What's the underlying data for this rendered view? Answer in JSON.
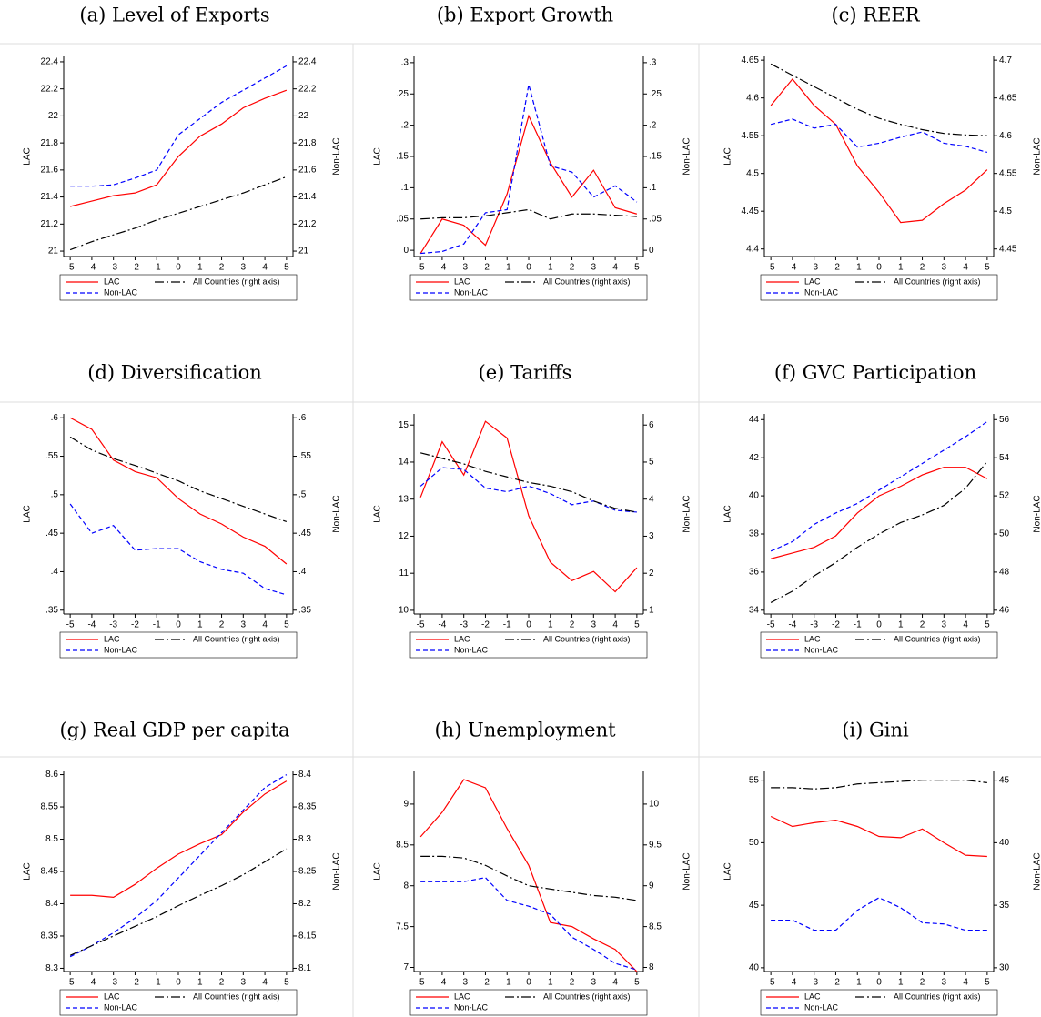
{
  "chart_data": [
    {
      "type": "line",
      "title": "(a) Level of Exports",
      "ylabel": "LAC",
      "y2label": "Non-LAC",
      "x": [
        -5,
        -4,
        -3,
        -2,
        -1,
        0,
        1,
        2,
        3,
        4,
        5
      ],
      "xlim": [
        -5.3,
        5.3
      ],
      "xticks": [
        -5,
        -4,
        -3,
        -2,
        -1,
        0,
        1,
        2,
        3,
        4,
        5
      ],
      "ylim": [
        20.96,
        22.44
      ],
      "yticks": [
        21,
        21.2,
        21.4,
        21.6,
        21.8,
        22,
        22.2,
        22.4
      ],
      "y2lim": [
        20.96,
        22.44
      ],
      "y2ticks": [
        21,
        21.2,
        21.4,
        21.6,
        21.8,
        22,
        22.2,
        22.4
      ],
      "series": [
        {
          "name": "LAC",
          "color": "#ff0000",
          "dash": "solid",
          "values": [
            21.33,
            21.37,
            21.41,
            21.43,
            21.49,
            21.7,
            21.85,
            21.94,
            22.06,
            22.13,
            22.19
          ]
        },
        {
          "name": "Non-LAC",
          "color": "#0000ff",
          "dash": "dash",
          "axis": "y2",
          "values": [
            21.48,
            21.48,
            21.49,
            21.54,
            21.6,
            21.86,
            21.98,
            22.1,
            22.19,
            22.28,
            22.37
          ]
        },
        {
          "name": "All Countries (right axis)",
          "color": "#000000",
          "dash": "longdash",
          "axis": "y2",
          "values": [
            21.01,
            21.07,
            21.12,
            21.17,
            21.23,
            21.28,
            21.33,
            21.38,
            21.43,
            21.49,
            21.55
          ]
        }
      ]
    },
    {
      "type": "line",
      "title": "(b) Export Growth",
      "ylabel": "LAC",
      "y2label": "Non-LAC",
      "x": [
        -5,
        -4,
        -3,
        -2,
        -1,
        0,
        1,
        2,
        3,
        4,
        5
      ],
      "xlim": [
        -5.3,
        5.3
      ],
      "xticks": [
        -5,
        -4,
        -3,
        -2,
        -1,
        0,
        1,
        2,
        3,
        4,
        5
      ],
      "ylim": [
        -0.01,
        0.31
      ],
      "yticks": [
        0,
        {
          "value": 0.05,
          "label": ".05"
        },
        {
          "value": 0.1,
          "label": ".1"
        },
        {
          "value": 0.15,
          "label": ".15"
        },
        {
          "value": 0.2,
          "label": ".2"
        },
        {
          "value": 0.25,
          "label": ".25"
        },
        {
          "value": 0.3,
          "label": ".3"
        }
      ],
      "y2lim": [
        -0.01,
        0.31
      ],
      "y2ticks": [
        0,
        {
          "value": 0.05,
          "label": ".05"
        },
        {
          "value": 0.1,
          "label": ".1"
        },
        {
          "value": 0.15,
          "label": ".15"
        },
        {
          "value": 0.2,
          "label": ".2"
        },
        {
          "value": 0.25,
          "label": ".25"
        },
        {
          "value": 0.3,
          "label": ".3"
        }
      ],
      "series": [
        {
          "name": "LAC",
          "color": "#ff0000",
          "dash": "solid",
          "values": [
            -0.005,
            0.05,
            0.04,
            0.008,
            0.09,
            0.215,
            0.14,
            0.085,
            0.128,
            0.068,
            0.058
          ]
        },
        {
          "name": "Non-LAC",
          "color": "#0000ff",
          "dash": "dash",
          "axis": "y2",
          "values": [
            -0.005,
            -0.002,
            0.01,
            0.06,
            0.065,
            0.265,
            0.135,
            0.125,
            0.085,
            0.103,
            0.077
          ]
        },
        {
          "name": "All Countries (right axis)",
          "color": "#000000",
          "dash": "longdash",
          "axis": "y2",
          "values": [
            0.05,
            0.052,
            0.052,
            0.055,
            0.06,
            0.065,
            0.05,
            0.058,
            0.058,
            0.056,
            0.054
          ]
        }
      ]
    },
    {
      "type": "line",
      "title": "(c) REER",
      "ylabel": "LAC",
      "y2label": "Non-LAC",
      "x": [
        -5,
        -4,
        -3,
        -2,
        -1,
        0,
        1,
        2,
        3,
        4,
        5
      ],
      "xlim": [
        -5.3,
        5.3
      ],
      "xticks": [
        -5,
        -4,
        -3,
        -2,
        -1,
        0,
        1,
        2,
        3,
        4,
        5
      ],
      "ylim": [
        4.39,
        4.655
      ],
      "yticks": [
        4.4,
        4.45,
        4.5,
        4.55,
        4.6,
        4.65
      ],
      "y2lim": [
        4.44,
        4.705
      ],
      "y2ticks": [
        4.45,
        4.5,
        4.55,
        4.6,
        4.65,
        4.7
      ],
      "series": [
        {
          "name": "LAC",
          "color": "#ff0000",
          "dash": "solid",
          "values": [
            4.59,
            4.625,
            4.59,
            4.565,
            4.51,
            4.475,
            4.435,
            4.438,
            4.46,
            4.478,
            4.505
          ]
        },
        {
          "name": "Non-LAC",
          "color": "#0000ff",
          "dash": "dash",
          "axis": "y2",
          "values": [
            4.615,
            4.622,
            4.61,
            4.615,
            4.585,
            4.59,
            4.598,
            4.605,
            4.59,
            4.586,
            4.578
          ]
        },
        {
          "name": "All Countries (right axis)",
          "color": "#000000",
          "dash": "longdash",
          "axis": "y2",
          "values": [
            4.695,
            4.68,
            4.665,
            4.65,
            4.635,
            4.623,
            4.615,
            4.608,
            4.603,
            4.601,
            4.6
          ]
        }
      ]
    },
    {
      "type": "line",
      "title": "(d) Diversification",
      "ylabel": "LAC",
      "y2label": "Non-LAC",
      "x": [
        -5,
        -4,
        -3,
        -2,
        -1,
        0,
        1,
        2,
        3,
        4,
        5
      ],
      "xlim": [
        -5.3,
        5.3
      ],
      "xticks": [
        -5,
        -4,
        -3,
        -2,
        -1,
        0,
        1,
        2,
        3,
        4,
        5
      ],
      "ylim": [
        0.345,
        0.605
      ],
      "yticks": [
        {
          "value": 0.35,
          "label": ".35"
        },
        {
          "value": 0.4,
          "label": ".4"
        },
        {
          "value": 0.45,
          "label": ".45"
        },
        {
          "value": 0.5,
          "label": ".5"
        },
        {
          "value": 0.55,
          "label": ".55"
        },
        {
          "value": 0.6,
          "label": ".6"
        }
      ],
      "y2lim": [
        0.345,
        0.605
      ],
      "y2ticks": [
        {
          "value": 0.35,
          "label": ".35"
        },
        {
          "value": 0.4,
          "label": ".4"
        },
        {
          "value": 0.45,
          "label": ".45"
        },
        {
          "value": 0.5,
          "label": ".5"
        },
        {
          "value": 0.55,
          "label": ".55"
        },
        {
          "value": 0.6,
          "label": ".6"
        }
      ],
      "series": [
        {
          "name": "LAC",
          "color": "#ff0000",
          "dash": "solid",
          "values": [
            0.6,
            0.585,
            0.545,
            0.53,
            0.522,
            0.495,
            0.475,
            0.462,
            0.445,
            0.433,
            0.41
          ]
        },
        {
          "name": "Non-LAC",
          "color": "#0000ff",
          "dash": "dash",
          "axis": "y2",
          "values": [
            0.488,
            0.45,
            0.46,
            0.428,
            0.43,
            0.43,
            0.413,
            0.403,
            0.398,
            0.378,
            0.37
          ]
        },
        {
          "name": "All Countries (right axis)",
          "color": "#000000",
          "dash": "longdash",
          "axis": "y2",
          "values": [
            0.575,
            0.558,
            0.547,
            0.538,
            0.528,
            0.518,
            0.505,
            0.495,
            0.485,
            0.475,
            0.465
          ]
        }
      ]
    },
    {
      "type": "line",
      "title": "(e) Tariffs",
      "ylabel": "LAC",
      "y2label": "Non-LAC",
      "x": [
        -5,
        -4,
        -3,
        -2,
        -1,
        0,
        1,
        2,
        3,
        4,
        5
      ],
      "xlim": [
        -5.3,
        5.3
      ],
      "xticks": [
        -5,
        -4,
        -3,
        -2,
        -1,
        0,
        1,
        2,
        3,
        4,
        5
      ],
      "ylim": [
        9.9,
        15.3
      ],
      "yticks": [
        10,
        11,
        12,
        13,
        14,
        15
      ],
      "y2lim": [
        0.9,
        6.3
      ],
      "y2ticks": [
        1,
        2,
        3,
        4,
        5,
        6
      ],
      "series": [
        {
          "name": "LAC",
          "color": "#ff0000",
          "dash": "solid",
          "values": [
            13.05,
            14.55,
            13.65,
            15.1,
            14.65,
            12.55,
            11.3,
            10.8,
            11.05,
            10.5,
            11.15
          ]
        },
        {
          "name": "Non-LAC",
          "color": "#0000ff",
          "dash": "dash",
          "axis": "y2",
          "values": [
            4.35,
            4.85,
            4.8,
            4.3,
            4.2,
            4.35,
            4.15,
            3.85,
            3.95,
            3.7,
            3.65
          ]
        },
        {
          "name": "All Countries (right axis)",
          "color": "#000000",
          "dash": "longdash",
          "axis": "y2",
          "values": [
            5.25,
            5.1,
            4.95,
            4.75,
            4.6,
            4.45,
            4.35,
            4.2,
            3.95,
            3.75,
            3.65
          ]
        }
      ]
    },
    {
      "type": "line",
      "title": "(f) GVC Participation",
      "ylabel": "LAC",
      "y2label": "Non-LAC",
      "x": [
        -5,
        -4,
        -3,
        -2,
        -1,
        0,
        1,
        2,
        3,
        4,
        5
      ],
      "xlim": [
        -5.3,
        5.3
      ],
      "xticks": [
        -5,
        -4,
        -3,
        -2,
        -1,
        0,
        1,
        2,
        3,
        4,
        5
      ],
      "ylim": [
        33.8,
        44.3
      ],
      "yticks": [
        34,
        36,
        38,
        40,
        42,
        44
      ],
      "y2lim": [
        45.8,
        56.3
      ],
      "y2ticks": [
        46,
        48,
        50,
        52,
        54,
        56
      ],
      "series": [
        {
          "name": "LAC",
          "color": "#ff0000",
          "dash": "solid",
          "values": [
            36.7,
            37.0,
            37.3,
            37.9,
            39.1,
            40.0,
            40.5,
            41.1,
            41.5,
            41.5,
            40.9
          ]
        },
        {
          "name": "Non-LAC",
          "color": "#0000ff",
          "dash": "dash",
          "axis": "y2",
          "values": [
            49.1,
            49.6,
            50.5,
            51.1,
            51.6,
            52.3,
            53.0,
            53.7,
            54.4,
            55.1,
            55.9
          ]
        },
        {
          "name": "All Countries (right axis)",
          "color": "#000000",
          "dash": "longdash",
          "axis": "y2",
          "values": [
            46.4,
            47.0,
            47.8,
            48.5,
            49.3,
            50.0,
            50.6,
            51.0,
            51.5,
            52.4,
            53.8
          ]
        }
      ]
    },
    {
      "type": "line",
      "title": "(g) Real GDP per capita",
      "ylabel": "LAC",
      "y2label": "Non-LAC",
      "x": [
        -5,
        -4,
        -3,
        -2,
        -1,
        0,
        1,
        2,
        3,
        4,
        5
      ],
      "xlim": [
        -5.3,
        5.3
      ],
      "xticks": [
        -5,
        -4,
        -3,
        -2,
        -1,
        0,
        1,
        2,
        3,
        4,
        5
      ],
      "ylim": [
        8.295,
        8.605
      ],
      "yticks": [
        8.3,
        8.35,
        8.4,
        8.45,
        8.5,
        8.55,
        8.6
      ],
      "y2lim": [
        8.095,
        8.405
      ],
      "y2ticks": [
        8.1,
        8.15,
        8.2,
        8.25,
        8.3,
        8.35,
        8.4
      ],
      "series": [
        {
          "name": "LAC",
          "color": "#ff0000",
          "dash": "solid",
          "values": [
            8.413,
            8.413,
            8.41,
            8.43,
            8.455,
            8.477,
            8.493,
            8.507,
            8.542,
            8.57,
            8.59
          ]
        },
        {
          "name": "Non-LAC",
          "color": "#0000ff",
          "dash": "dash",
          "axis": "y2",
          "values": [
            8.118,
            8.135,
            8.155,
            8.178,
            8.205,
            8.24,
            8.275,
            8.31,
            8.345,
            8.38,
            8.4
          ]
        },
        {
          "name": "All Countries (right axis)",
          "color": "#000000",
          "dash": "longdash",
          "axis": "y2",
          "values": [
            8.12,
            8.135,
            8.15,
            8.165,
            8.18,
            8.197,
            8.213,
            8.228,
            8.245,
            8.265,
            8.285
          ]
        }
      ]
    },
    {
      "type": "line",
      "title": "(h) Unemployment",
      "ylabel": "LAC",
      "y2label": "Non-LAC",
      "x": [
        -5,
        -4,
        -3,
        -2,
        -1,
        0,
        1,
        2,
        3,
        4,
        5
      ],
      "xlim": [
        -5.3,
        5.3
      ],
      "xticks": [
        -5,
        -4,
        -3,
        -2,
        -1,
        0,
        1,
        2,
        3,
        4,
        5
      ],
      "ylim": [
        6.95,
        9.4
      ],
      "yticks": [
        7,
        7.5,
        8,
        8.5,
        9
      ],
      "y2lim": [
        7.95,
        10.4
      ],
      "y2ticks": [
        8,
        8.5,
        9,
        9.5,
        10
      ],
      "series": [
        {
          "name": "LAC",
          "color": "#ff0000",
          "dash": "solid",
          "values": [
            8.6,
            8.9,
            9.3,
            9.2,
            8.7,
            8.25,
            7.55,
            7.5,
            7.35,
            7.22,
            6.95
          ]
        },
        {
          "name": "Non-LAC",
          "color": "#0000ff",
          "dash": "dash",
          "axis": "y2",
          "values": [
            9.05,
            9.05,
            9.05,
            9.1,
            8.82,
            8.75,
            8.65,
            8.37,
            8.22,
            8.05,
            7.97
          ]
        },
        {
          "name": "All Countries (right axis)",
          "color": "#000000",
          "dash": "longdash",
          "axis": "y2",
          "values": [
            9.36,
            9.36,
            9.34,
            9.25,
            9.12,
            9.0,
            8.96,
            8.92,
            8.88,
            8.86,
            8.82
          ]
        }
      ]
    },
    {
      "type": "line",
      "title": "(i) Gini",
      "ylabel": "LAC",
      "y2label": "Non-LAC",
      "x": [
        -5,
        -4,
        -3,
        -2,
        -1,
        0,
        1,
        2,
        3,
        4,
        5
      ],
      "xlim": [
        -5.3,
        5.3
      ],
      "xticks": [
        -5,
        -4,
        -3,
        -2,
        -1,
        0,
        1,
        2,
        3,
        4,
        5
      ],
      "ylim": [
        39.7,
        55.7
      ],
      "yticks": [
        40,
        45,
        50,
        55
      ],
      "y2lim": [
        29.7,
        45.7
      ],
      "y2ticks": [
        30,
        35,
        40,
        45
      ],
      "series": [
        {
          "name": "LAC",
          "color": "#ff0000",
          "dash": "solid",
          "values": [
            52.1,
            51.3,
            51.6,
            51.8,
            51.3,
            50.5,
            50.4,
            51.1,
            50.0,
            49.0,
            48.9
          ]
        },
        {
          "name": "Non-LAC",
          "color": "#0000ff",
          "dash": "dash",
          "axis": "y2",
          "values": [
            33.8,
            33.8,
            33.0,
            33.0,
            34.6,
            35.6,
            34.8,
            33.6,
            33.5,
            33.0,
            33.0
          ]
        },
        {
          "name": "All Countries (right axis)",
          "color": "#000000",
          "dash": "longdash",
          "axis": "y2",
          "values": [
            44.4,
            44.4,
            44.3,
            44.4,
            44.7,
            44.8,
            44.9,
            45.0,
            45.0,
            45.0,
            44.8
          ]
        }
      ]
    }
  ]
}
